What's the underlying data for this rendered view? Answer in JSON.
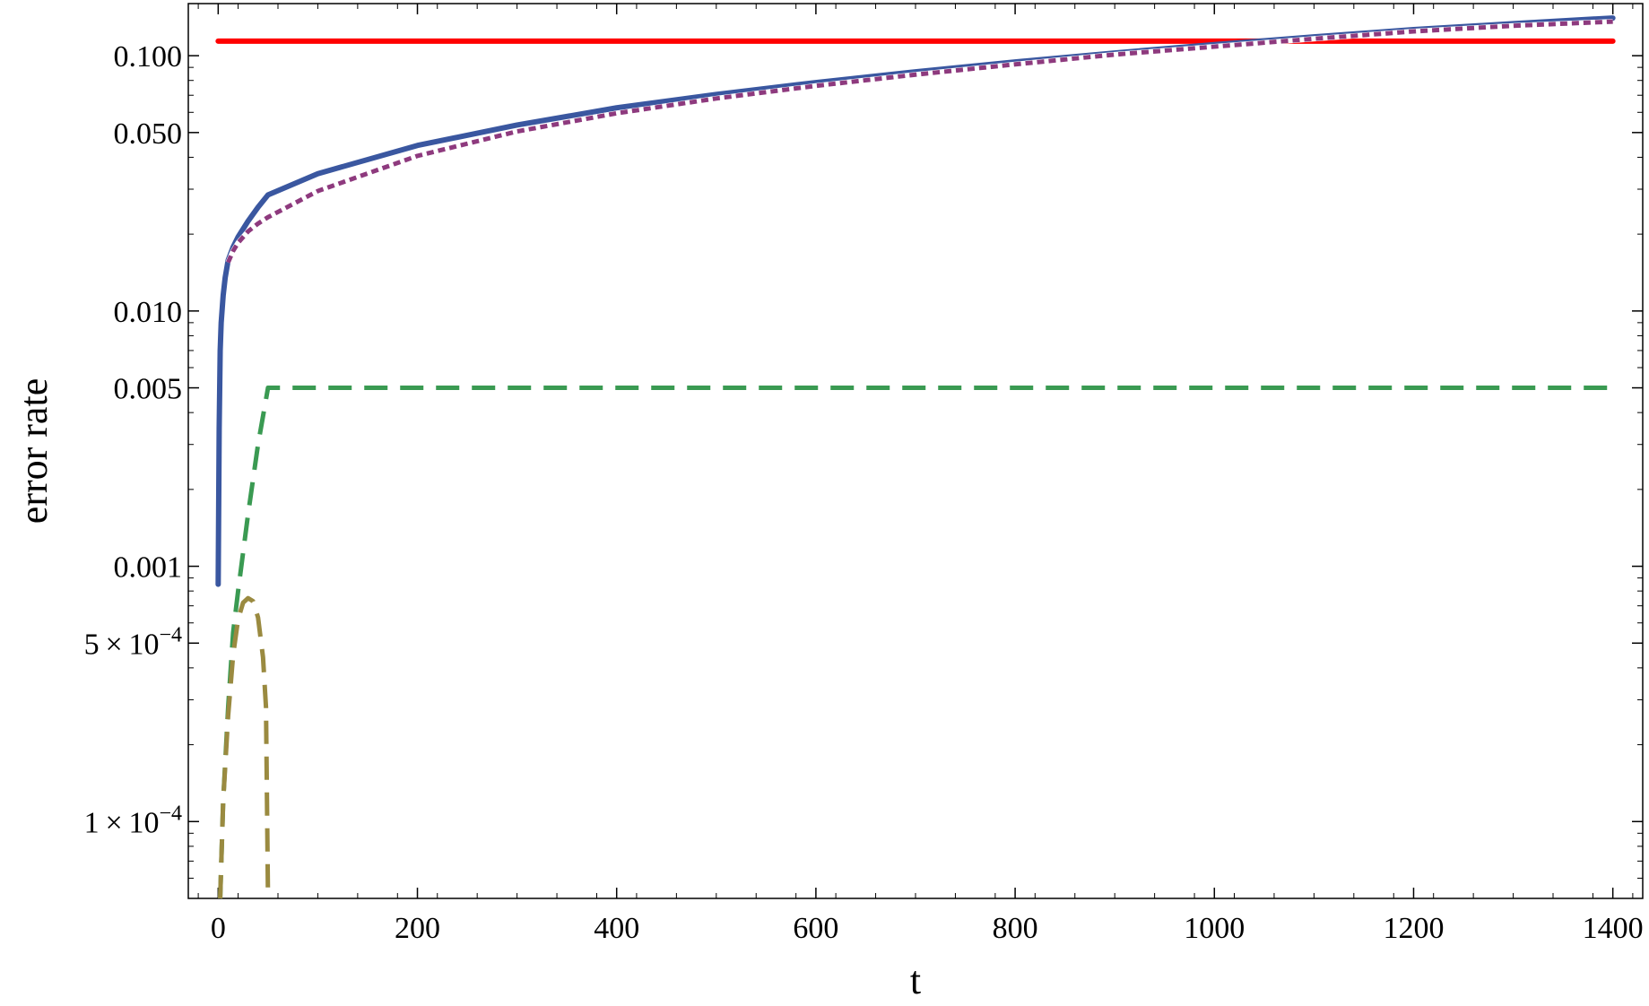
{
  "chart_data": {
    "type": "line",
    "title": "",
    "xlabel": "t",
    "ylabel": "error rate",
    "xlim": [
      -30,
      1430
    ],
    "ylim": [
      5e-05,
      0.16
    ],
    "yscale": "log",
    "grid": false,
    "legend": "none",
    "x_ticks": [
      0,
      200,
      400,
      600,
      800,
      1000,
      1200,
      1400
    ],
    "x_tick_labels": [
      "0",
      "200",
      "400",
      "600",
      "800",
      "1000",
      "1200",
      "1400"
    ],
    "y_ticks": [
      0.0001,
      0.0005,
      0.001,
      0.005,
      0.01,
      0.05,
      0.1
    ],
    "y_tick_labels": [
      {
        "mantissa": "1",
        "times": "×",
        "base": "10",
        "exponent": "−4"
      },
      {
        "mantissa": "5",
        "times": "×",
        "base": "10",
        "exponent": "−4"
      },
      {
        "text": "0.001"
      },
      {
        "text": "0.005"
      },
      {
        "text": "0.010"
      },
      {
        "text": "0.050"
      },
      {
        "text": "0.100"
      }
    ],
    "series": [
      {
        "color": "#ff0000",
        "style": "solid",
        "x": [
          0,
          1400
        ],
        "y": [
          0.114,
          0.114
        ]
      },
      {
        "color": "#3a57a0",
        "style": "solid",
        "x": [
          0,
          1,
          2,
          3,
          5,
          7,
          10,
          15,
          20,
          30,
          40,
          50,
          100,
          200,
          300,
          400,
          500,
          600,
          700,
          800,
          900,
          1000,
          1100,
          1200,
          1300,
          1400
        ],
        "y": [
          0.00085,
          0.0035,
          0.007,
          0.009,
          0.0115,
          0.0135,
          0.0158,
          0.0178,
          0.0195,
          0.0225,
          0.0255,
          0.0285,
          0.0345,
          0.0445,
          0.0535,
          0.0625,
          0.0705,
          0.0785,
          0.0865,
          0.0945,
          0.1025,
          0.1105,
          0.1185,
          0.1265,
          0.1335,
          0.1405
        ]
      },
      {
        "color": "#8e3a7e",
        "style": "dotted",
        "x": [
          10,
          15,
          20,
          30,
          40,
          50,
          100,
          200,
          300,
          400,
          500,
          600,
          700,
          800,
          900,
          1000,
          1100,
          1200,
          1300,
          1400
        ],
        "y": [
          0.0155,
          0.0172,
          0.0185,
          0.0205,
          0.022,
          0.0233,
          0.0295,
          0.0405,
          0.0505,
          0.0595,
          0.068,
          0.0762,
          0.0843,
          0.0925,
          0.101,
          0.1085,
          0.1165,
          0.1245,
          0.131,
          0.136
        ]
      },
      {
        "color": "#3a9a52",
        "style": "dashed",
        "x": [
          2,
          5,
          10,
          15,
          20,
          30,
          40,
          50,
          1400
        ],
        "y": [
          5e-05,
          0.00012,
          0.00028,
          0.00055,
          0.0008,
          0.0016,
          0.003,
          0.005,
          0.005
        ]
      },
      {
        "color": "#9a8a40",
        "style": "dashed",
        "x": [
          2,
          5,
          10,
          15,
          20,
          25,
          30,
          35,
          40,
          45,
          48,
          50
        ],
        "y": [
          5e-05,
          0.00012,
          0.00026,
          0.00045,
          0.00062,
          0.00072,
          0.00075,
          0.00073,
          0.00063,
          0.00044,
          0.00028,
          5e-05
        ]
      }
    ]
  }
}
